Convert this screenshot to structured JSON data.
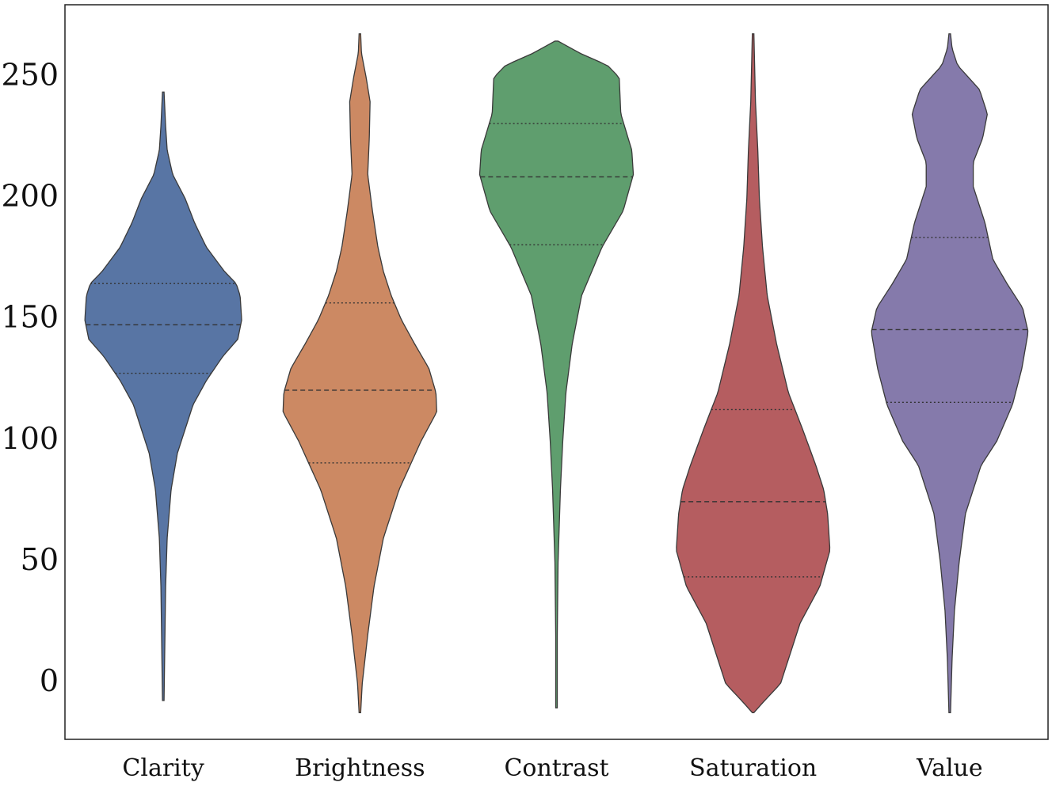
{
  "chart_data": {
    "type": "violin",
    "title": "",
    "xlabel": "",
    "ylabel": "",
    "ylim": [
      -23,
      280
    ],
    "yticks": [
      0,
      50,
      100,
      150,
      200,
      250
    ],
    "categories": [
      "Clarity",
      "Brightness",
      "Contrast",
      "Saturation",
      "Value"
    ],
    "inner": "quartile",
    "grid": false,
    "legend": "none",
    "series": [
      {
        "category": "Clarity",
        "color": "#5875a4",
        "min": -7,
        "max": 244,
        "q1": 128,
        "median": 148,
        "q3": 165,
        "density_profile": [
          [
            -7,
            0.01
          ],
          [
            40,
            0.03
          ],
          [
            60,
            0.05
          ],
          [
            80,
            0.1
          ],
          [
            95,
            0.18
          ],
          [
            105,
            0.28
          ],
          [
            115,
            0.38
          ],
          [
            125,
            0.55
          ],
          [
            135,
            0.76
          ],
          [
            142,
            0.95
          ],
          [
            150,
            1.0
          ],
          [
            160,
            0.98
          ],
          [
            165,
            0.93
          ],
          [
            170,
            0.78
          ],
          [
            180,
            0.55
          ],
          [
            190,
            0.4
          ],
          [
            200,
            0.28
          ],
          [
            210,
            0.12
          ],
          [
            220,
            0.05
          ],
          [
            230,
            0.03
          ],
          [
            244,
            0.01
          ]
        ]
      },
      {
        "category": "Brightness",
        "color": "#cc8963",
        "min": -12,
        "max": 268,
        "q1": 91,
        "median": 121,
        "q3": 157,
        "density_profile": [
          [
            -12,
            0.01
          ],
          [
            0,
            0.03
          ],
          [
            20,
            0.1
          ],
          [
            40,
            0.18
          ],
          [
            60,
            0.3
          ],
          [
            80,
            0.5
          ],
          [
            100,
            0.78
          ],
          [
            112,
            0.98
          ],
          [
            120,
            0.97
          ],
          [
            130,
            0.88
          ],
          [
            140,
            0.7
          ],
          [
            150,
            0.53
          ],
          [
            160,
            0.4
          ],
          [
            170,
            0.3
          ],
          [
            180,
            0.23
          ],
          [
            195,
            0.16
          ],
          [
            210,
            0.1
          ],
          [
            225,
            0.12
          ],
          [
            240,
            0.13
          ],
          [
            250,
            0.08
          ],
          [
            260,
            0.02
          ],
          [
            268,
            0.01
          ]
        ]
      },
      {
        "category": "Contrast",
        "color": "#5f9e6e",
        "min": -10,
        "max": 265,
        "q1": 181,
        "median": 209,
        "q3": 231,
        "density_profile": [
          [
            -10,
            0.01
          ],
          [
            20,
            0.01
          ],
          [
            50,
            0.02
          ],
          [
            80,
            0.05
          ],
          [
            100,
            0.08
          ],
          [
            120,
            0.12
          ],
          [
            140,
            0.2
          ],
          [
            160,
            0.32
          ],
          [
            180,
            0.58
          ],
          [
            195,
            0.85
          ],
          [
            210,
            0.98
          ],
          [
            220,
            0.96
          ],
          [
            235,
            0.82
          ],
          [
            250,
            0.8
          ],
          [
            255,
            0.65
          ],
          [
            260,
            0.3
          ],
          [
            265,
            0.02
          ]
        ]
      },
      {
        "category": "Saturation",
        "color": "#b55d60",
        "min": -12,
        "max": 268,
        "q1": 44,
        "median": 75,
        "q3": 113,
        "density_profile": [
          [
            -12,
            0.01
          ],
          [
            -8,
            0.12
          ],
          [
            0,
            0.35
          ],
          [
            10,
            0.45
          ],
          [
            25,
            0.6
          ],
          [
            40,
            0.85
          ],
          [
            55,
            0.98
          ],
          [
            70,
            0.95
          ],
          [
            80,
            0.9
          ],
          [
            90,
            0.8
          ],
          [
            105,
            0.63
          ],
          [
            120,
            0.45
          ],
          [
            140,
            0.3
          ],
          [
            160,
            0.18
          ],
          [
            180,
            0.12
          ],
          [
            200,
            0.08
          ],
          [
            220,
            0.06
          ],
          [
            240,
            0.03
          ],
          [
            268,
            0.01
          ]
        ]
      },
      {
        "category": "Value",
        "color": "#857aab",
        "min": -12,
        "max": 268,
        "q1": 116,
        "median": 146,
        "q3": 184,
        "density_profile": [
          [
            -12,
            0.01
          ],
          [
            10,
            0.03
          ],
          [
            30,
            0.06
          ],
          [
            50,
            0.12
          ],
          [
            70,
            0.2
          ],
          [
            90,
            0.4
          ],
          [
            100,
            0.6
          ],
          [
            115,
            0.8
          ],
          [
            130,
            0.92
          ],
          [
            145,
            1.0
          ],
          [
            155,
            0.93
          ],
          [
            165,
            0.73
          ],
          [
            175,
            0.55
          ],
          [
            190,
            0.45
          ],
          [
            205,
            0.3
          ],
          [
            215,
            0.3
          ],
          [
            225,
            0.42
          ],
          [
            235,
            0.48
          ],
          [
            245,
            0.38
          ],
          [
            255,
            0.1
          ],
          [
            262,
            0.03
          ],
          [
            268,
            0.01
          ]
        ]
      }
    ]
  }
}
